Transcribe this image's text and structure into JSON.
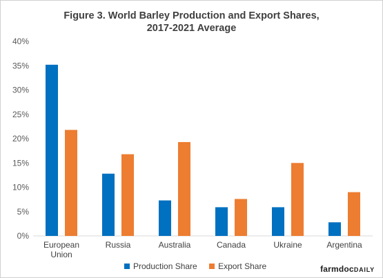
{
  "chart_data": {
    "type": "bar",
    "title_line1": "Figure  3. World Barley Production and Export Shares,",
    "title_line2": "2017-2021 Average",
    "categories": [
      {
        "line1": "European",
        "line2": "Union"
      },
      {
        "line1": "Russia",
        "line2": ""
      },
      {
        "line1": "Australia",
        "line2": ""
      },
      {
        "line1": "Canada",
        "line2": ""
      },
      {
        "line1": "Ukraine",
        "line2": ""
      },
      {
        "line1": "Argentina",
        "line2": ""
      }
    ],
    "series": [
      {
        "name": "Production Share",
        "color": "#0070c0",
        "values": [
          35.2,
          12.8,
          7.3,
          5.9,
          5.9,
          2.8
        ]
      },
      {
        "name": "Export Share",
        "color": "#ed7d31",
        "values": [
          21.8,
          16.8,
          19.3,
          7.6,
          15.0,
          9.0
        ]
      }
    ],
    "y_ticks": [
      "0%",
      "5%",
      "10%",
      "15%",
      "20%",
      "25%",
      "30%",
      "35%",
      "40%"
    ],
    "ylim": [
      0,
      40
    ],
    "grid": false,
    "legend_position": "bottom"
  },
  "brand": {
    "main": "farmdoc",
    "suffix": "DAILY"
  }
}
